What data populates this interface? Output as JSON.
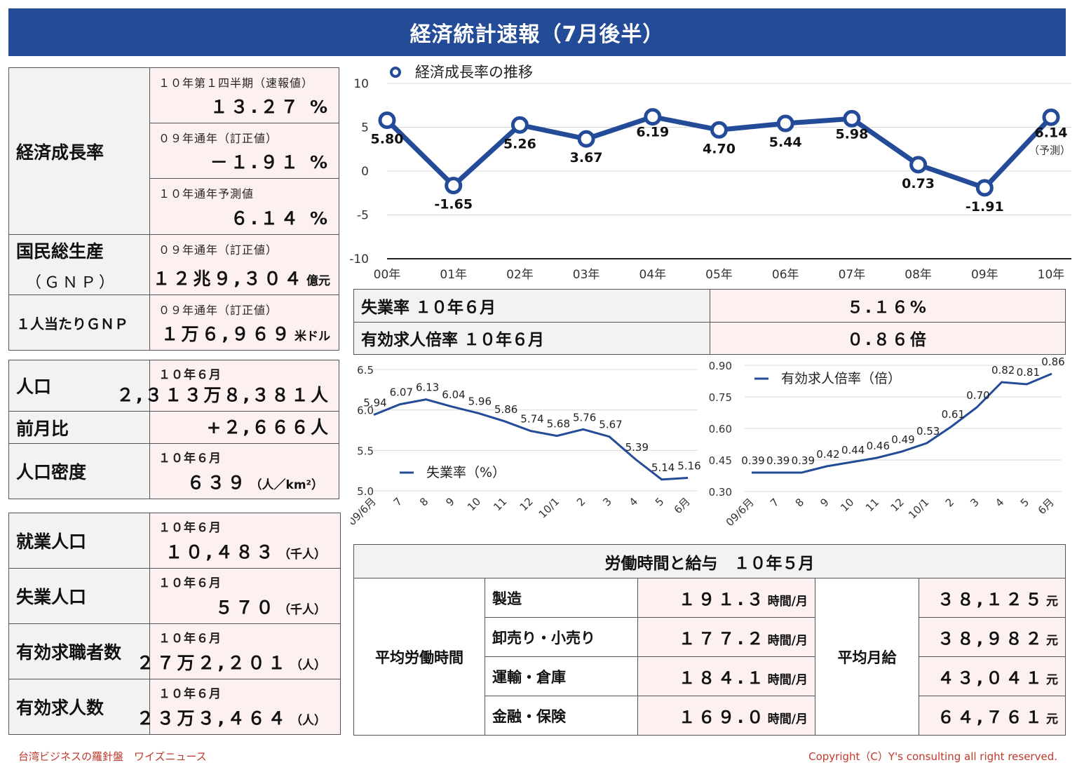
{
  "title": "経済統計速報（7月後半）",
  "gdp": {
    "label": "経済成長率",
    "rows": [
      {
        "sub": "１０年第１四半期（速報値）",
        "value": "１３.２７ %"
      },
      {
        "sub": "０９年通年（訂正値）",
        "value": "－１.９１ %"
      },
      {
        "sub": "１０年通年予測値",
        "value": "６.１４ %"
      }
    ]
  },
  "gnp": {
    "label": "国民総生産",
    "label2": "（ＧＮＰ）",
    "sub": "０９年通年（訂正値）",
    "value": "１２兆９,３０４",
    "unit": "億元"
  },
  "gnp_per": {
    "label": "１人当たりＧＮＰ",
    "sub": "０９年通年（訂正値）",
    "value": "１万６,９６９",
    "unit": "米ドル"
  },
  "population": {
    "label": "人口",
    "sub": "１０年６月",
    "value": "２,３１３万８,３８１人",
    "mom_label": "前月比",
    "mom_value": "+２,６６６人",
    "density_label": "人口密度",
    "density_sub": "１０年６月",
    "density_value": "６３９",
    "density_unit": "（人／km²）"
  },
  "employment": [
    {
      "label": "就業人口",
      "sub": "１０年６月",
      "value": "１０,４８３",
      "unit": "（千人）"
    },
    {
      "label": "失業人口",
      "sub": "１０年６月",
      "value": "５７０",
      "unit": "（千人）"
    },
    {
      "label": "有効求職者数",
      "sub": "１０年６月",
      "value": "２７万２,２０１",
      "unit": "（人）"
    },
    {
      "label": "有効求人数",
      "sub": "１０年６月",
      "value": "２３万３,４６４",
      "unit": "（人）"
    }
  ],
  "mid": {
    "unemp_label": "失業率 １０年６月",
    "unemp_value": "５.１６%",
    "ratio_label": "有効求人倍率 １０年６月",
    "ratio_value": "０.８６倍"
  },
  "labor": {
    "title": "労働時間と給与　１０年５月",
    "hours_label": "平均労働時間",
    "pay_label": "平均月給",
    "hours_unit": "時間/月",
    "pay_unit": "元",
    "rows": [
      {
        "industry": "製造",
        "hours": "１９１.３",
        "pay": "３８,１２５"
      },
      {
        "industry": "卸売り・小売り",
        "hours": "１７７.２",
        "pay": "３８,９８２"
      },
      {
        "industry": "運輸・倉庫",
        "hours": "１８４.１",
        "pay": "４３,０４１"
      },
      {
        "industry": "金融・保険",
        "hours": "１６９.０",
        "pay": "６４,７６１"
      }
    ]
  },
  "footer_left": "台湾ビジネスの羅針盤　ワイズニュース",
  "footer_right": "Copyright（C）Y's consulting all right reserved.",
  "colors": {
    "primary": "#234b97",
    "cell_pink": "#fdf0f0",
    "cell_gray": "#f2f2f2",
    "footer": "#c0392b"
  },
  "chart_data": [
    {
      "type": "line",
      "series": [
        {
          "name": "経済成長率の推移",
          "values": [
            5.8,
            -1.65,
            5.26,
            3.67,
            6.19,
            4.7,
            5.44,
            5.98,
            0.73,
            -1.91,
            6.14
          ]
        }
      ],
      "categories": [
        "00年",
        "01年",
        "02年",
        "03年",
        "04年",
        "05年",
        "06年",
        "07年",
        "08年",
        "09年",
        "10年"
      ],
      "labels": [
        "5.80",
        "-1.65",
        "5.26",
        "3.67",
        "6.19",
        "4.70",
        "5.44",
        "5.98",
        "0.73",
        "-1.91",
        "6.14"
      ],
      "annotation": "（予測）",
      "yticks": [
        "10",
        "5",
        "0",
        "-5",
        "-10"
      ],
      "ylim": [
        -10,
        10
      ],
      "grid": true,
      "legend": "top-left"
    },
    {
      "type": "line",
      "series": [
        {
          "name": "失業率（%）",
          "values": [
            5.94,
            6.07,
            6.13,
            6.04,
            5.96,
            5.86,
            5.74,
            5.68,
            5.76,
            5.67,
            5.39,
            5.14,
            5.16
          ]
        }
      ],
      "categories": [
        "09/6月",
        "7",
        "8",
        "9",
        "10",
        "11",
        "12",
        "10/1",
        "2",
        "3",
        "4",
        "5",
        "6月"
      ],
      "labels": [
        "5.94",
        "6.07",
        "6.13",
        "6.04",
        "5.96",
        "5.86",
        "5.74",
        "5.68",
        "5.76",
        "5.67",
        "5.39",
        "5.14",
        "5.16"
      ],
      "yticks": [
        "6.5",
        "6.0",
        "5.5",
        "5.0"
      ],
      "ylim": [
        5.0,
        6.5
      ],
      "grid": true,
      "legend": "bottom-left"
    },
    {
      "type": "line",
      "series": [
        {
          "name": "有効求人倍率（倍）",
          "values": [
            0.39,
            0.39,
            0.39,
            0.42,
            0.44,
            0.46,
            0.49,
            0.53,
            0.61,
            0.7,
            0.82,
            0.81,
            0.86
          ]
        }
      ],
      "categories": [
        "09/6月",
        "7",
        "8",
        "9",
        "10",
        "11",
        "12",
        "10/1",
        "2",
        "3",
        "4",
        "5",
        "6月"
      ],
      "labels": [
        "0.39",
        "0.39",
        "0.39",
        "0.42",
        "0.44",
        "0.46",
        "0.49",
        "0.53",
        "0.61",
        "0.70",
        "0.82",
        "0.81",
        "0.86"
      ],
      "yticks": [
        "0.90",
        "0.75",
        "0.60",
        "0.45",
        "0.30"
      ],
      "ylim": [
        0.3,
        0.9
      ],
      "grid": true,
      "legend": "top-left"
    }
  ]
}
